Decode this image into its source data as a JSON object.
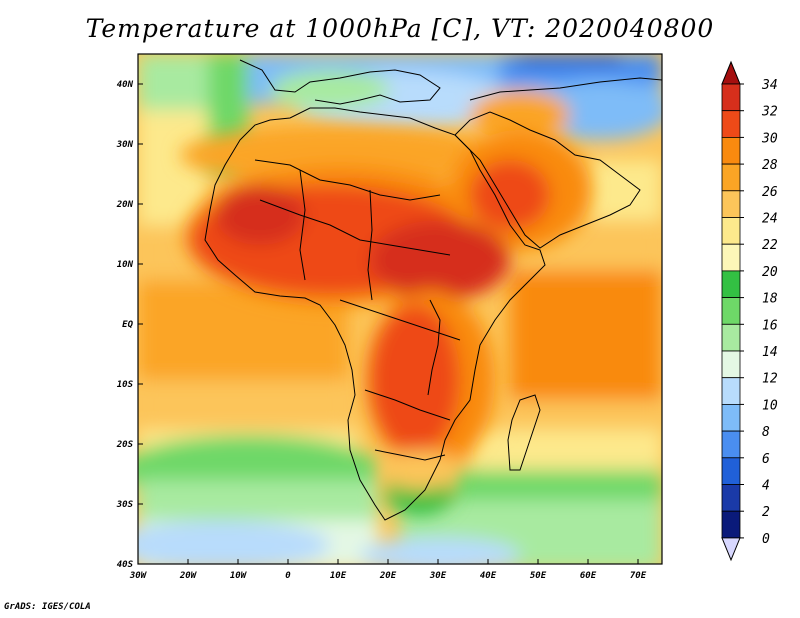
{
  "title": "Temperature at 1000hPa [C], VT: 2020040800",
  "credit": "GrADS: IGES/COLA",
  "map": {
    "lat_labels": [
      "40N",
      "30N",
      "20N",
      "10N",
      "EQ",
      "10S",
      "20S",
      "30S",
      "40S"
    ],
    "lon_labels": [
      "30W",
      "20W",
      "10W",
      "0",
      "10E",
      "20E",
      "30E",
      "40E",
      "50E",
      "60E",
      "70E"
    ]
  },
  "colorbar": {
    "levels": [
      "34",
      "32",
      "30",
      "28",
      "26",
      "24",
      "22",
      "20",
      "18",
      "16",
      "14",
      "12",
      "10",
      "8",
      "6",
      "4",
      "2",
      "0"
    ],
    "colors": [
      "#a50f0f",
      "#d62f1c",
      "#ee4a18",
      "#f98a0f",
      "#fba525",
      "#fcc55a",
      "#fde98c",
      "#fdf7b8",
      "#33c043",
      "#6ed868",
      "#a8eaa0",
      "#e4f8e4",
      "#b8dcfc",
      "#7ebcf8",
      "#4a8ef0",
      "#2060d8",
      "#1a3aa8",
      "#0a1a7a",
      "#d8d8ff"
    ]
  }
}
